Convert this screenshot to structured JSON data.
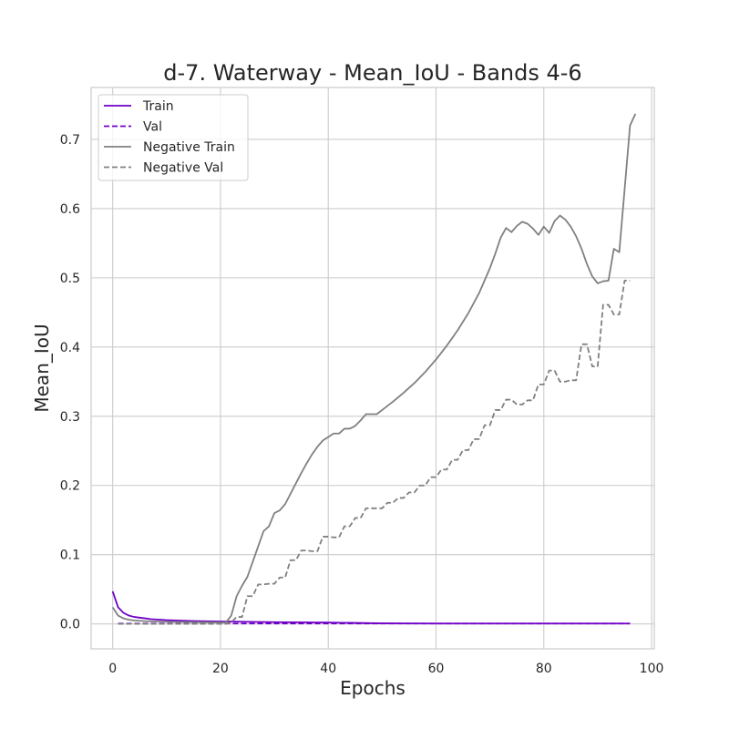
{
  "chart_data": {
    "type": "line",
    "title": "d-7. Waterway - Mean_IoU - Bands 4-6",
    "xlabel": "Epochs",
    "ylabel": "Mean_IoU",
    "xlim": [
      -4,
      100.5
    ],
    "ylim": [
      -0.036,
      0.775
    ],
    "xticks": [
      0,
      20,
      40,
      60,
      80,
      100
    ],
    "yticks": [
      0.0,
      0.1,
      0.2,
      0.3,
      0.4,
      0.5,
      0.6,
      0.7
    ],
    "ytick_labels": [
      "0.0",
      "0.1",
      "0.2",
      "0.3",
      "0.4",
      "0.5",
      "0.6",
      "0.7"
    ],
    "grid": true,
    "legend_position": "top-left",
    "series": [
      {
        "name": "Train",
        "color": "#7000c8",
        "dash": "solid",
        "points": [
          [
            0,
            0.047
          ],
          [
            1,
            0.024
          ],
          [
            2,
            0.016
          ],
          [
            3,
            0.012
          ],
          [
            4,
            0.01
          ],
          [
            5,
            0.009
          ],
          [
            6,
            0.008
          ],
          [
            7,
            0.007
          ],
          [
            8,
            0.0065
          ],
          [
            10,
            0.0055
          ],
          [
            12,
            0.005
          ],
          [
            15,
            0.0042
          ],
          [
            20,
            0.0035
          ],
          [
            25,
            0.003
          ],
          [
            30,
            0.0025
          ],
          [
            40,
            0.002
          ],
          [
            50,
            0.0008
          ],
          [
            60,
            0.0005
          ],
          [
            70,
            0.0005
          ],
          [
            80,
            0.0005
          ],
          [
            90,
            0.0005
          ],
          [
            96,
            0.0005
          ]
        ]
      },
      {
        "name": "Val",
        "color": "#7000c8",
        "dash": "dashed",
        "points": [
          [
            1,
            0.0005
          ],
          [
            10,
            0.0005
          ],
          [
            20,
            0.0005
          ],
          [
            30,
            0.0005
          ],
          [
            40,
            0.0005
          ],
          [
            50,
            0.0005
          ],
          [
            60,
            0.0005
          ],
          [
            70,
            0.0005
          ],
          [
            80,
            0.0005
          ],
          [
            90,
            0.0005
          ],
          [
            96,
            0.0005
          ]
        ]
      },
      {
        "name": "Negative Train",
        "color": "#808080",
        "dash": "solid",
        "points": [
          [
            0,
            0.024
          ],
          [
            1,
            0.012
          ],
          [
            2,
            0.008
          ],
          [
            3,
            0.006
          ],
          [
            4,
            0.005
          ],
          [
            6,
            0.004
          ],
          [
            10,
            0.003
          ],
          [
            15,
            0.0025
          ],
          [
            20,
            0.002
          ],
          [
            21,
            0.002
          ],
          [
            22,
            0.012
          ],
          [
            23,
            0.04
          ],
          [
            24,
            0.055
          ],
          [
            25,
            0.068
          ],
          [
            26,
            0.09
          ],
          [
            27,
            0.112
          ],
          [
            28,
            0.134
          ],
          [
            29,
            0.141
          ],
          [
            30,
            0.16
          ],
          [
            31,
            0.164
          ],
          [
            32,
            0.173
          ],
          [
            33,
            0.188
          ],
          [
            34,
            0.203
          ],
          [
            35,
            0.218
          ],
          [
            36,
            0.232
          ],
          [
            37,
            0.245
          ],
          [
            38,
            0.256
          ],
          [
            39,
            0.265
          ],
          [
            40,
            0.27
          ],
          [
            41,
            0.275
          ],
          [
            42,
            0.275
          ],
          [
            43,
            0.282
          ],
          [
            44,
            0.282
          ],
          [
            45,
            0.286
          ],
          [
            46,
            0.294
          ],
          [
            47,
            0.303
          ],
          [
            48,
            0.303
          ],
          [
            49,
            0.303
          ],
          [
            50,
            0.309
          ],
          [
            52,
            0.321
          ],
          [
            54,
            0.334
          ],
          [
            56,
            0.348
          ],
          [
            58,
            0.364
          ],
          [
            60,
            0.382
          ],
          [
            62,
            0.402
          ],
          [
            64,
            0.424
          ],
          [
            66,
            0.449
          ],
          [
            68,
            0.478
          ],
          [
            70,
            0.514
          ],
          [
            71,
            0.535
          ],
          [
            72,
            0.558
          ],
          [
            73,
            0.572
          ],
          [
            74,
            0.566
          ],
          [
            75,
            0.575
          ],
          [
            76,
            0.581
          ],
          [
            77,
            0.578
          ],
          [
            78,
            0.571
          ],
          [
            79,
            0.562
          ],
          [
            80,
            0.574
          ],
          [
            81,
            0.565
          ],
          [
            82,
            0.582
          ],
          [
            83,
            0.59
          ],
          [
            84,
            0.584
          ],
          [
            85,
            0.574
          ],
          [
            86,
            0.56
          ],
          [
            87,
            0.542
          ],
          [
            88,
            0.52
          ],
          [
            89,
            0.502
          ],
          [
            90,
            0.492
          ],
          [
            91,
            0.495
          ],
          [
            92,
            0.496
          ],
          [
            93,
            0.542
          ],
          [
            94,
            0.537
          ],
          [
            95,
            0.628
          ],
          [
            96,
            0.72
          ],
          [
            97,
            0.737
          ]
        ]
      },
      {
        "name": "Negative Val",
        "color": "#808080",
        "dash": "dashed",
        "points": [
          [
            1,
            0.0
          ],
          [
            20,
            0.0
          ],
          [
            21,
            0.0
          ],
          [
            22,
            0.002
          ],
          [
            23,
            0.01
          ],
          [
            24,
            0.01
          ],
          [
            25,
            0.04
          ],
          [
            26,
            0.04
          ],
          [
            27,
            0.057
          ],
          [
            28,
            0.057
          ],
          [
            29,
            0.058
          ],
          [
            30,
            0.058
          ],
          [
            31,
            0.067
          ],
          [
            32,
            0.067
          ],
          [
            33,
            0.092
          ],
          [
            34,
            0.092
          ],
          [
            35,
            0.106
          ],
          [
            36,
            0.106
          ],
          [
            37,
            0.105
          ],
          [
            38,
            0.105
          ],
          [
            39,
            0.126
          ],
          [
            40,
            0.126
          ],
          [
            41,
            0.125
          ],
          [
            42,
            0.125
          ],
          [
            43,
            0.141
          ],
          [
            44,
            0.141
          ],
          [
            45,
            0.153
          ],
          [
            46,
            0.153
          ],
          [
            47,
            0.167
          ],
          [
            48,
            0.167
          ],
          [
            49,
            0.167
          ],
          [
            50,
            0.167
          ],
          [
            51,
            0.175
          ],
          [
            52,
            0.175
          ],
          [
            53,
            0.182
          ],
          [
            54,
            0.182
          ],
          [
            55,
            0.19
          ],
          [
            56,
            0.19
          ],
          [
            57,
            0.2
          ],
          [
            58,
            0.2
          ],
          [
            59,
            0.212
          ],
          [
            60,
            0.212
          ],
          [
            61,
            0.223
          ],
          [
            62,
            0.223
          ],
          [
            63,
            0.237
          ],
          [
            64,
            0.237
          ],
          [
            65,
            0.251
          ],
          [
            66,
            0.251
          ],
          [
            67,
            0.267
          ],
          [
            68,
            0.267
          ],
          [
            69,
            0.287
          ],
          [
            70,
            0.287
          ],
          [
            71,
            0.309
          ],
          [
            72,
            0.309
          ],
          [
            73,
            0.324
          ],
          [
            74,
            0.324
          ],
          [
            75,
            0.317
          ],
          [
            76,
            0.317
          ],
          [
            77,
            0.323
          ],
          [
            78,
            0.323
          ],
          [
            79,
            0.346
          ],
          [
            80,
            0.346
          ],
          [
            81,
            0.366
          ],
          [
            82,
            0.366
          ],
          [
            83,
            0.35
          ],
          [
            84,
            0.35
          ],
          [
            85,
            0.352
          ],
          [
            86,
            0.352
          ],
          [
            87,
            0.404
          ],
          [
            88,
            0.404
          ],
          [
            89,
            0.372
          ],
          [
            90,
            0.372
          ],
          [
            91,
            0.461
          ],
          [
            92,
            0.461
          ],
          [
            93,
            0.447
          ],
          [
            94,
            0.447
          ],
          [
            95,
            0.496
          ],
          [
            96,
            0.496
          ]
        ]
      }
    ]
  }
}
